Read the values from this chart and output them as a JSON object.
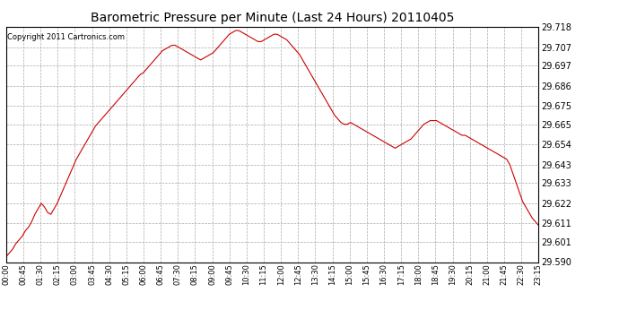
{
  "title": "Barometric Pressure per Minute (Last 24 Hours) 20110405",
  "copyright": "Copyright 2011 Cartronics.com",
  "line_color": "#cc0000",
  "background_color": "#ffffff",
  "grid_color": "#aaaaaa",
  "ylim": [
    29.59,
    29.718
  ],
  "yticks": [
    29.59,
    29.601,
    29.611,
    29.622,
    29.633,
    29.643,
    29.654,
    29.665,
    29.675,
    29.686,
    29.697,
    29.707,
    29.718
  ],
  "xtick_labels": [
    "00:00",
    "00:45",
    "01:30",
    "02:15",
    "03:00",
    "03:45",
    "04:30",
    "05:15",
    "06:00",
    "06:45",
    "07:30",
    "08:15",
    "09:00",
    "09:45",
    "10:30",
    "11:15",
    "12:00",
    "12:45",
    "13:30",
    "14:15",
    "15:00",
    "15:45",
    "16:30",
    "17:15",
    "18:00",
    "18:45",
    "19:30",
    "20:15",
    "21:00",
    "21:45",
    "22:30",
    "23:15"
  ],
  "pressure_data": [
    29.593,
    29.595,
    29.597,
    29.6,
    29.602,
    29.604,
    29.607,
    29.609,
    29.612,
    29.616,
    29.619,
    29.622,
    29.62,
    29.617,
    29.616,
    29.619,
    29.622,
    29.626,
    29.63,
    29.634,
    29.638,
    29.642,
    29.646,
    29.649,
    29.652,
    29.655,
    29.658,
    29.661,
    29.664,
    29.666,
    29.668,
    29.67,
    29.672,
    29.674,
    29.676,
    29.678,
    29.68,
    29.682,
    29.684,
    29.686,
    29.688,
    29.69,
    29.692,
    29.693,
    29.695,
    29.697,
    29.699,
    29.701,
    29.703,
    29.705,
    29.706,
    29.707,
    29.708,
    29.708,
    29.707,
    29.706,
    29.705,
    29.704,
    29.703,
    29.702,
    29.701,
    29.7,
    29.701,
    29.702,
    29.703,
    29.704,
    29.706,
    29.708,
    29.71,
    29.712,
    29.714,
    29.715,
    29.716,
    29.716,
    29.715,
    29.714,
    29.713,
    29.712,
    29.711,
    29.71,
    29.71,
    29.711,
    29.712,
    29.713,
    29.714,
    29.714,
    29.713,
    29.712,
    29.711,
    29.709,
    29.707,
    29.705,
    29.703,
    29.7,
    29.697,
    29.694,
    29.691,
    29.688,
    29.685,
    29.682,
    29.679,
    29.676,
    29.673,
    29.67,
    29.668,
    29.666,
    29.665,
    29.665,
    29.666,
    29.665,
    29.664,
    29.663,
    29.662,
    29.661,
    29.66,
    29.659,
    29.658,
    29.657,
    29.656,
    29.655,
    29.654,
    29.653,
    29.652,
    29.653,
    29.654,
    29.655,
    29.656,
    29.657,
    29.659,
    29.661,
    29.663,
    29.665,
    29.666,
    29.667,
    29.667,
    29.667,
    29.666,
    29.665,
    29.664,
    29.663,
    29.662,
    29.661,
    29.66,
    29.659,
    29.659,
    29.658,
    29.657,
    29.656,
    29.655,
    29.654,
    29.653,
    29.652,
    29.651,
    29.65,
    29.649,
    29.648,
    29.647,
    29.646,
    29.643,
    29.638,
    29.633,
    29.628,
    29.623,
    29.62,
    29.617,
    29.614,
    29.612,
    29.61
  ]
}
